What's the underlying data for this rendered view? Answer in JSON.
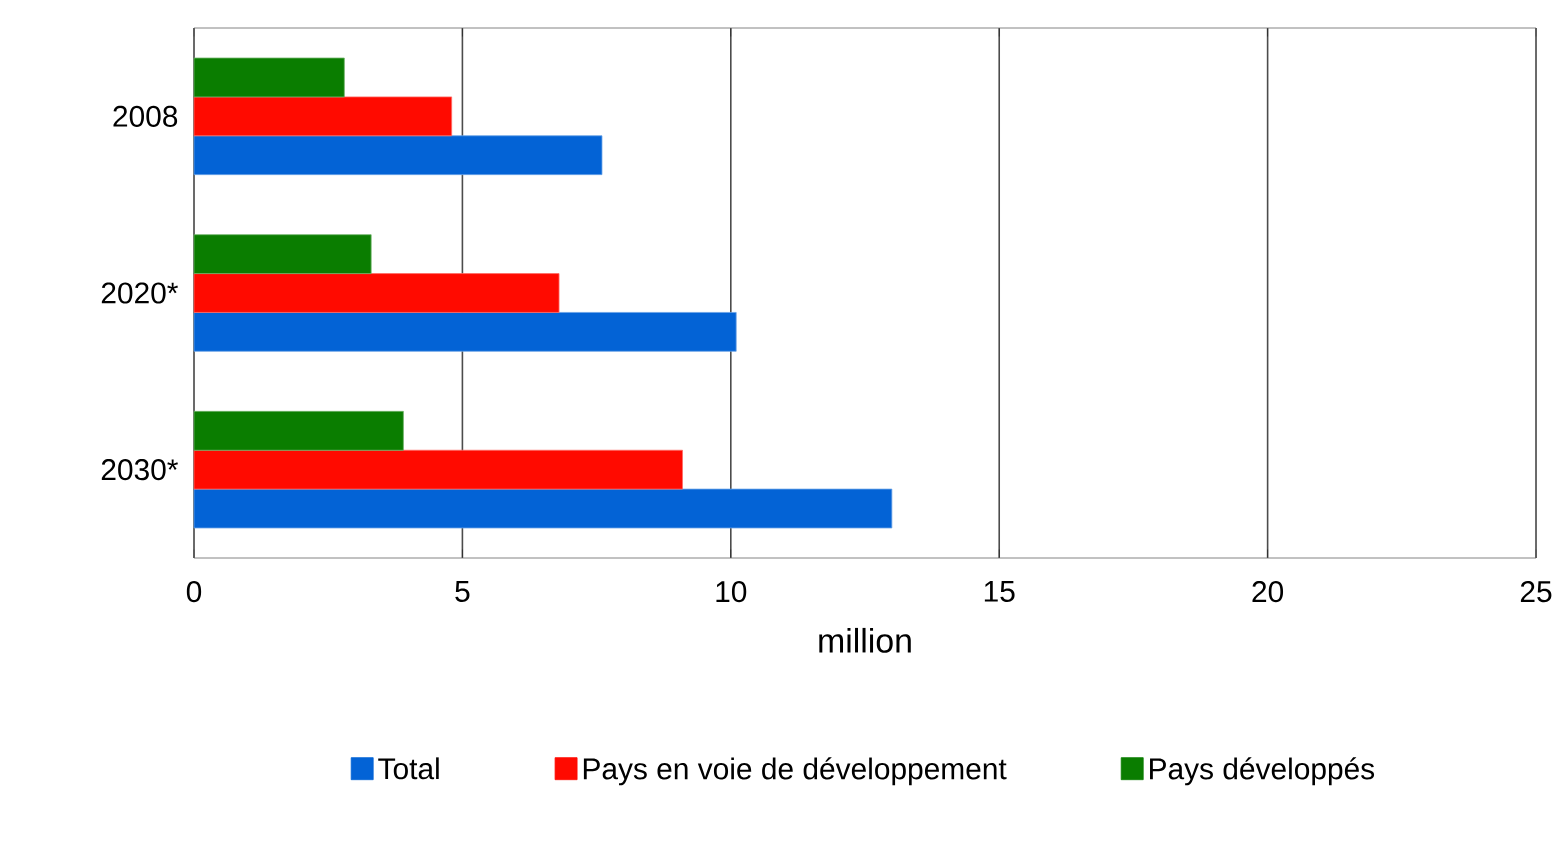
{
  "chart_data": {
    "type": "bar",
    "orientation": "horizontal",
    "xlabel": "million",
    "categories": [
      "2008",
      "2020*",
      "2030*"
    ],
    "series": [
      {
        "name": "Total",
        "color": "#0363d6",
        "values": [
          7.6,
          10.1,
          13
        ]
      },
      {
        "name": "Pays en voie de développement",
        "color": "#ff0a00",
        "values": [
          4.8,
          6.8,
          9.1
        ]
      },
      {
        "name": "Pays développés",
        "color": "#0a7d00",
        "values": [
          2.8,
          3.3,
          3.9
        ]
      }
    ],
    "xlim": [
      0,
      25
    ],
    "xticks": [
      0,
      5,
      10,
      15,
      20,
      25
    ],
    "grid": "x",
    "legend": "bottom"
  }
}
